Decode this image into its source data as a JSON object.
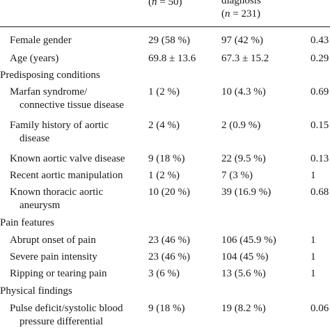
{
  "header": {
    "col1_top": ") ",
    "col1_n_prefix": "(",
    "col1_n": "n",
    "col1_n_suffix": " = 50)",
    "col2_top": "diagnosis",
    "col2_n_prefix": "(",
    "col2_n": "n",
    "col2_n_suffix": " = 231)"
  },
  "rows": [
    {
      "label": "Female gender",
      "c1": "29 (58 %)",
      "c2": "97 (42 %)",
      "c3": "0.43"
    },
    {
      "label": "Age (years)",
      "c1": "69.8 ± 13.6",
      "c2": "67.3 ± 15.2",
      "c3": "0.29"
    },
    {
      "section": "Predisposing conditions"
    },
    {
      "label": "Marfan syndrome/",
      "label2": "connective tissue disease",
      "c1": "1 (2 %)",
      "c2": "10 (4.3 %)",
      "c3": "0.69"
    },
    {
      "label": "Family history of aortic",
      "label2": "disease",
      "c1": "2 (4 %)",
      "c2": "2 (0.9 %)",
      "c3": "0.15"
    },
    {
      "label": "Known aortic valve disease",
      "c1": "9 (18 %)",
      "c2": "22 (9.5 %)",
      "c3": "0.13"
    },
    {
      "label": "Recent aortic manipulation",
      "c1": "1 (2 %)",
      "c2": "7 (3 %)",
      "c3": "1"
    },
    {
      "label": "Known thoracic aortic",
      "label2": "aneurysm",
      "c1": "10 (20 %)",
      "c2": "39 (16.9 %)",
      "c3": "0.68"
    },
    {
      "section": "Pain features"
    },
    {
      "label": "Abrupt onset of pain",
      "c1": "23 (46 %)",
      "c2": "106 (45.9 %)",
      "c3": "1"
    },
    {
      "label": "Severe pain intensity",
      "c1": "23 (46 %)",
      "c2": "104 (45 %)",
      "c3": "1"
    },
    {
      "label": "Ripping or tearing pain",
      "c1": "3 (6 %)",
      "c2": "13 (5.6 %)",
      "c3": "1"
    },
    {
      "section": "Physical findings"
    },
    {
      "label": "Pulse deficit/systolic blood",
      "label2": "pressure differential",
      "c1": "9 (18 %)",
      "c2": "19 (8.2 %)",
      "c3": "0.06"
    }
  ]
}
